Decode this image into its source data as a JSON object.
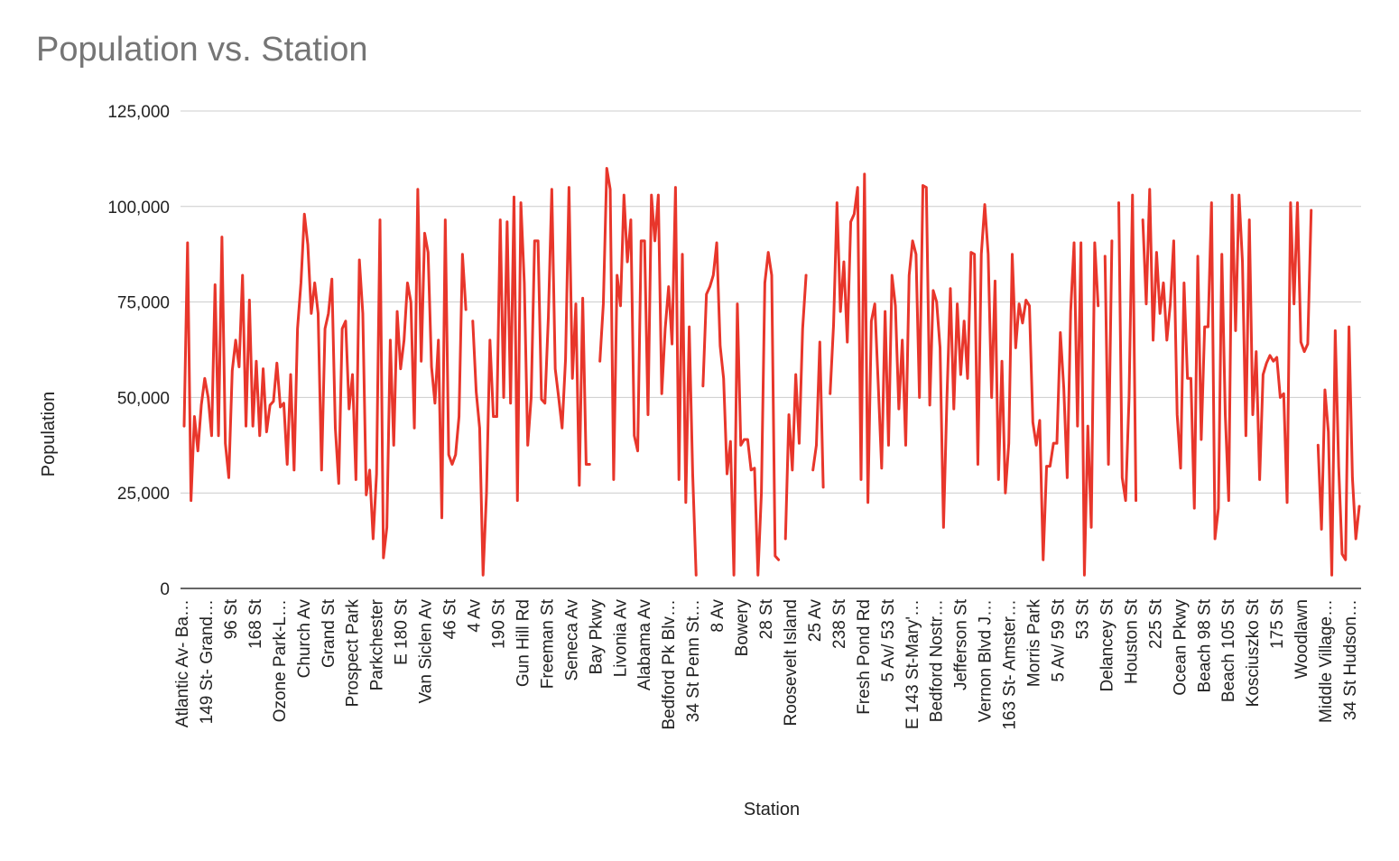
{
  "chart_data": {
    "type": "line",
    "title": "Population vs. Station",
    "xlabel": "Station",
    "ylabel": "Population",
    "ylim": [
      0,
      125000
    ],
    "y_ticks": [
      "0",
      "25,000",
      "50,000",
      "75,000",
      "100,000",
      "125,000"
    ],
    "x_tick_labels": [
      "Atlantic Av- Ba…",
      "149 St- Grand…",
      "96 St",
      "168 St",
      "Ozone Park-L…",
      "Church Av",
      "Grand St",
      "Prospect Park",
      "Parkchester",
      "E 180 St",
      "Van Siclen Av",
      "46 St",
      "4 Av",
      "190 St",
      "Gun Hill Rd",
      "Freeman St",
      "Seneca Av",
      "Bay Pkwy",
      "Livonia Av",
      "Alabama Av",
      "Bedford Pk Blv…",
      "34 St Penn St…",
      "8 Av",
      "Bowery",
      "28 St",
      "Roosevelt Island",
      "25 Av",
      "238 St",
      "Fresh Pond Rd",
      "5 Av/ 53 St",
      "E 143 St-Mary'…",
      "Bedford Nostr…",
      "Jefferson St",
      "Vernon Blvd J…",
      "163 St- Amster…",
      "Morris Park",
      "5 Av/ 59 St",
      "53 St",
      "Delancey St",
      "Houston St",
      "225 St",
      "Ocean Pkwy",
      "Beach 98 St",
      "Beach 105 St",
      "Kosciuszko St",
      "175 St",
      "Woodlawn",
      "Middle Village…",
      "34 St Hudson…"
    ],
    "grid": "horizontal",
    "legend": "none",
    "color": "#e8362b",
    "values": [
      42500,
      90500,
      23000,
      45000,
      36000,
      48000,
      55000,
      50000,
      40000,
      79500,
      40000,
      92000,
      38000,
      29000,
      57000,
      65000,
      58000,
      82000,
      42500,
      75500,
      42500,
      59500,
      40000,
      57500,
      41000,
      48000,
      49000,
      59000,
      47500,
      48500,
      32500,
      56000,
      31000,
      68000,
      80000,
      98000,
      90000,
      72000,
      80000,
      72000,
      31000,
      68000,
      72000,
      81000,
      42000,
      27500,
      68000,
      70000,
      47000,
      56000,
      28500,
      86000,
      72000,
      24500,
      31000,
      13000,
      30000,
      96500,
      8000,
      16000,
      65000,
      37500,
      72500,
      57500,
      65000,
      80000,
      75000,
      42000,
      104500,
      59500,
      93000,
      88000,
      58000,
      48500,
      65000,
      18500,
      96500,
      35000,
      32500,
      35000,
      45000,
      87500,
      73000,
      null,
      70000,
      51500,
      42000,
      3500,
      25000,
      65000,
      45000,
      45000,
      96500,
      50000,
      96000,
      48500,
      102500,
      23000,
      101000,
      80000,
      37500,
      50000,
      91000,
      91000,
      49500,
      48500,
      71000,
      104500,
      57500,
      50000,
      42000,
      60000,
      105000,
      55000,
      74500,
      27000,
      76000,
      32500,
      32500,
      null,
      null,
      59500,
      74500,
      110000,
      104500,
      28500,
      82000,
      74000,
      103000,
      85500,
      96500,
      40000,
      36000,
      91000,
      91000,
      45500,
      103000,
      91000,
      103000,
      51000,
      68000,
      79000,
      64000,
      105000,
      28500,
      87500,
      22500,
      68500,
      30000,
      3500,
      null,
      53000,
      77000,
      79000,
      82000,
      90500,
      63500,
      55000,
      30000,
      38500,
      3500,
      74500,
      37500,
      39000,
      39000,
      31000,
      31500,
      3500,
      25000,
      80000,
      88000,
      82000,
      8500,
      7500,
      null,
      13000,
      45500,
      31000,
      56000,
      38000,
      68000,
      82000,
      null,
      31000,
      37500,
      64500,
      26500,
      null,
      51000,
      69000,
      101000,
      72500,
      85500,
      64500,
      96000,
      98000,
      105000,
      28500,
      108500,
      22500,
      70000,
      74500,
      53500,
      31500,
      72500,
      37500,
      82000,
      74000,
      47000,
      65000,
      37500,
      82000,
      91000,
      87500,
      50000,
      105500,
      105000,
      48000,
      78000,
      75000,
      63000,
      16000,
      50000,
      78500,
      47000,
      74500,
      56000,
      70000,
      55000,
      88000,
      87500,
      32500,
      87500,
      100500,
      87500,
      50000,
      80500,
      28500,
      59500,
      25000,
      38000,
      87500,
      63000,
      74500,
      69500,
      75500,
      74000,
      43500,
      37500,
      44000,
      7500,
      32000,
      32000,
      38000,
      38000,
      67000,
      52500,
      29000,
      72500,
      90500,
      42500,
      90500,
      3500,
      42500,
      16000,
      90500,
      74000,
      null,
      87000,
      32500,
      91000,
      null,
      101000,
      29000,
      23000,
      50000,
      103000,
      23000,
      null,
      96500,
      74500,
      104500,
      65000,
      88000,
      72000,
      80000,
      65000,
      74500,
      91000,
      45500,
      31500,
      80000,
      55000,
      55000,
      21000,
      87000,
      39000,
      68500,
      68500,
      101000,
      13000,
      21000,
      87500,
      45500,
      23000,
      103000,
      67500,
      103000,
      85500,
      40000,
      96500,
      45500,
      62000,
      28500,
      56000,
      59000,
      61000,
      59500,
      60500,
      50000,
      51000,
      22500,
      101000,
      74500,
      101000,
      64500,
      62000,
      64000,
      99000,
      null,
      37500,
      15500,
      52000,
      41000,
      3500,
      67500,
      32000,
      9000,
      7500,
      68500,
      29000,
      13000,
      21500
    ]
  }
}
